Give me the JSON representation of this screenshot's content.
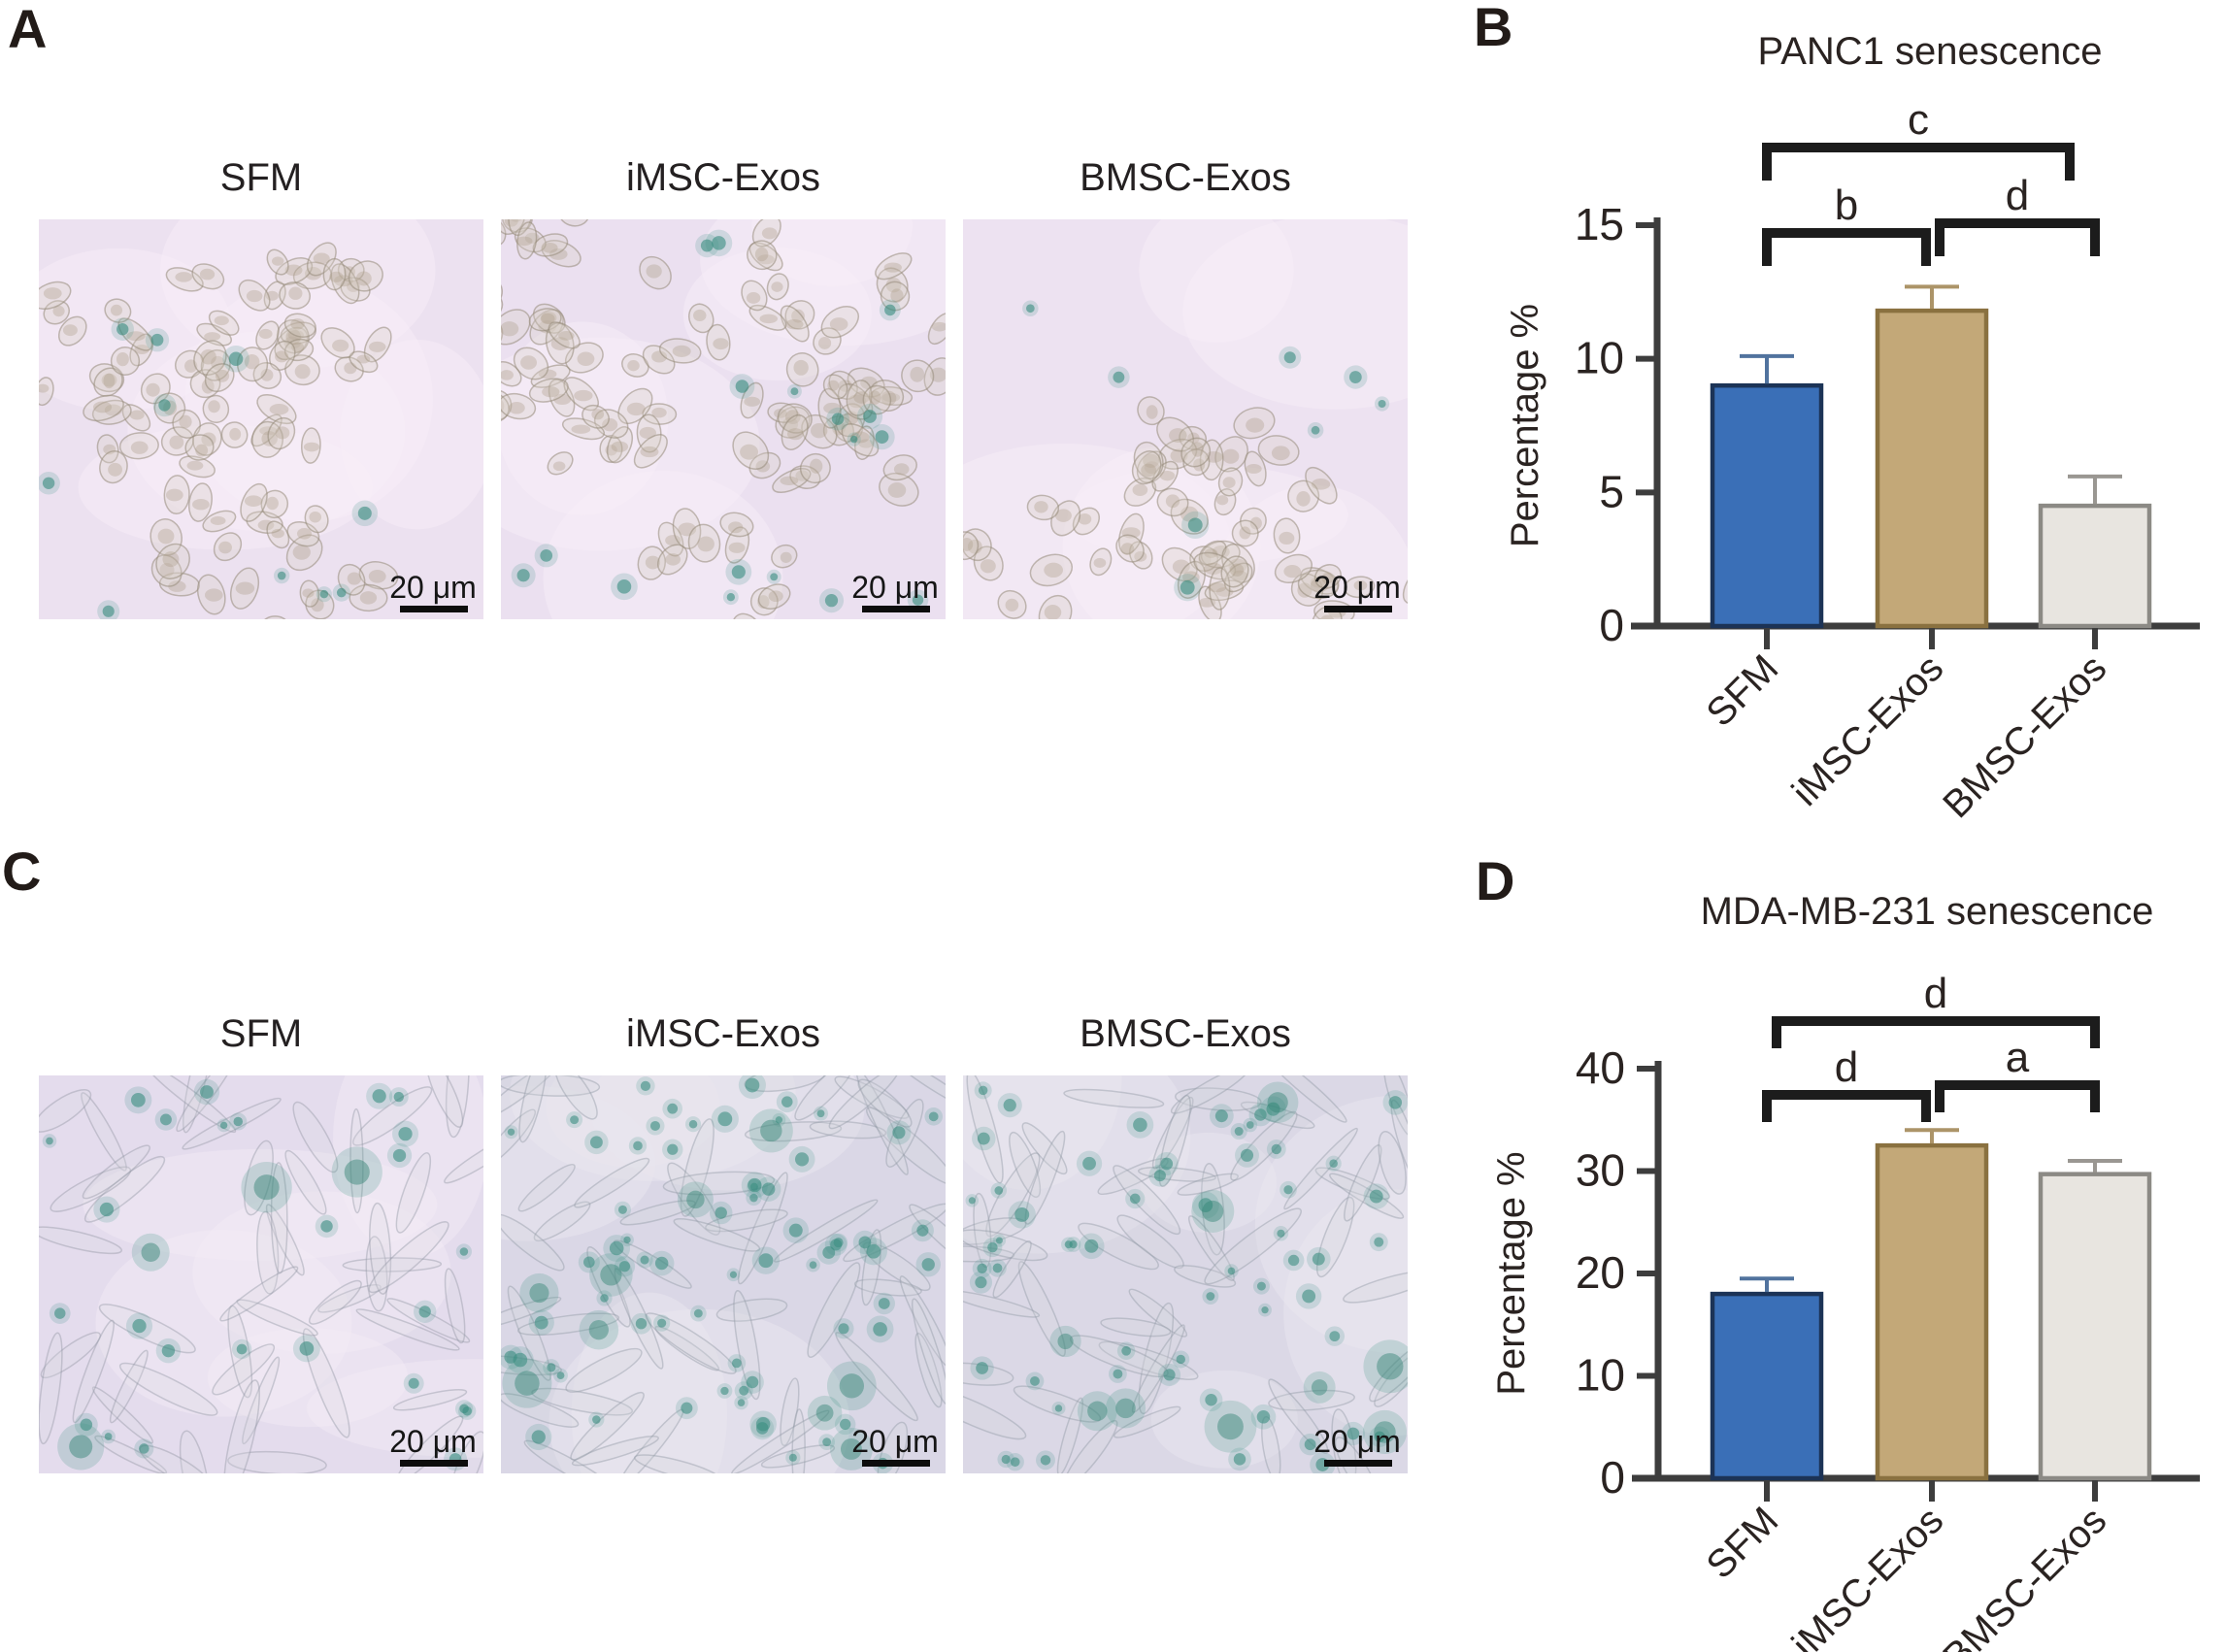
{
  "panels": [
    {
      "id": "panelA",
      "letter": "A",
      "type": "micrographs",
      "columns": [
        "SFM",
        "iMSC-Exos",
        "BMSC-Exos"
      ],
      "scale_bar_label": "20 μm",
      "stain_levels": [
        "sparse",
        "sparse",
        "sparse"
      ]
    },
    {
      "id": "panelB",
      "letter": "B",
      "type": "chart",
      "chart_ref": 0
    },
    {
      "id": "panelC",
      "letter": "C",
      "type": "micrographs",
      "columns": [
        "SFM",
        "iMSC-Exos",
        "BMSC-Exos"
      ],
      "scale_bar_label": "20 μm",
      "stain_levels": [
        "moderate",
        "dense",
        "dense"
      ]
    },
    {
      "id": "panelD",
      "letter": "D",
      "type": "chart",
      "chart_ref": 1
    }
  ],
  "chart_data": [
    {
      "type": "bar",
      "title": "PANC1 senescence",
      "xlabel": "",
      "ylabel": "Percentage %",
      "categories": [
        "SFM",
        "iMSC-Exos",
        "BMSC-Exos"
      ],
      "values": [
        9.0,
        11.8,
        4.5
      ],
      "errors": [
        1.1,
        0.9,
        1.1
      ],
      "ylim": [
        0,
        15
      ],
      "yticks": [
        0,
        5,
        10,
        15
      ],
      "grid": false,
      "legend": null,
      "bar_colors": [
        "#3A6FB7",
        "#C3A878",
        "#E8E5E0"
      ],
      "bar_border_colors": [
        "#1C3356",
        "#8A7140",
        "#8C8A85"
      ],
      "error_bar_colors": [
        "#51739E",
        "#AC9468",
        "#9A9792"
      ],
      "axis_color": "#3D3D3D",
      "bracket_color": "#1C1C1C",
      "significance_brackets": [
        {
          "from": "SFM",
          "to": "iMSC-Exos",
          "label": "b"
        },
        {
          "from": "iMSC-Exos",
          "to": "BMSC-Exos",
          "label": "d"
        },
        {
          "from": "SFM",
          "to": "BMSC-Exos",
          "label": "c"
        }
      ]
    },
    {
      "type": "bar",
      "title": "MDA-MB-231 senescence",
      "xlabel": "",
      "ylabel": "Percentage %",
      "categories": [
        "SFM",
        "iMSC-Exos",
        "BMSC-Exos"
      ],
      "values": [
        18.0,
        32.5,
        29.7
      ],
      "errors": [
        1.5,
        1.5,
        1.3
      ],
      "ylim": [
        0,
        40
      ],
      "yticks": [
        0,
        10,
        20,
        30,
        40
      ],
      "grid": false,
      "legend": null,
      "bar_colors": [
        "#3A6FB7",
        "#C3A878",
        "#E8E5E0"
      ],
      "bar_border_colors": [
        "#1C3356",
        "#8A7140",
        "#8C8A85"
      ],
      "error_bar_colors": [
        "#51739E",
        "#AC9468",
        "#9A9792"
      ],
      "axis_color": "#3D3D3D",
      "bracket_color": "#1C1C1C",
      "significance_brackets": [
        {
          "from": "SFM",
          "to": "iMSC-Exos",
          "label": "d"
        },
        {
          "from": "iMSC-Exos",
          "to": "BMSC-Exos",
          "label": "a"
        },
        {
          "from": "SFM",
          "to": "BMSC-Exos",
          "label": "d"
        }
      ]
    }
  ]
}
